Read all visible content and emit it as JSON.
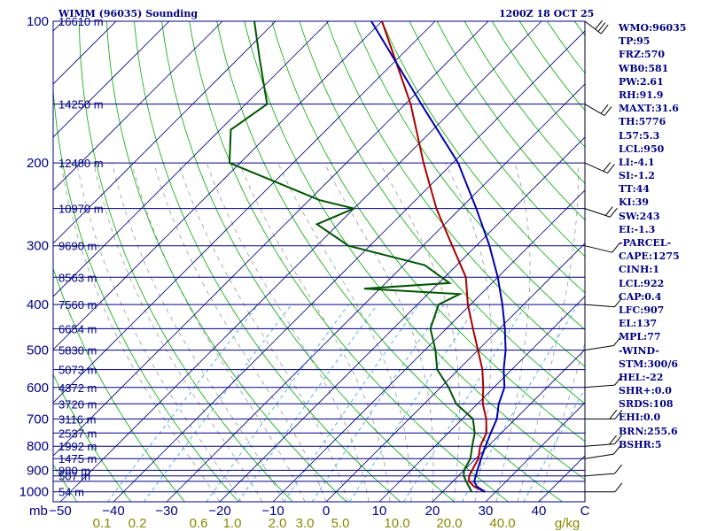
{
  "header": {
    "title": "WIMM (96035) Sounding",
    "datetime": "1200Z 18 OCT 25"
  },
  "chart_data": {
    "type": "line",
    "title": "WIMM (96035) Sounding",
    "subtitle": "1200Z 18 OCT 25",
    "xlabel_units": "C",
    "mixing_units": "g/kg",
    "pressure_unit_label": "mb",
    "pressure_levels": [
      100,
      200,
      300,
      400,
      500,
      600,
      700,
      800,
      900,
      1000
    ],
    "isobar_levels": [
      100,
      150,
      200,
      250,
      300,
      350,
      400,
      450,
      500,
      550,
      600,
      650,
      700,
      750,
      800,
      850,
      900,
      925,
      950,
      1000
    ],
    "height_labels": [
      {
        "p": 100,
        "label": "16610 m"
      },
      {
        "p": 150,
        "label": "14250 m"
      },
      {
        "p": 200,
        "label": "12480 m"
      },
      {
        "p": 250,
        "label": "10970 m"
      },
      {
        "p": 300,
        "label": "9690 m"
      },
      {
        "p": 350,
        "label": "8563 m"
      },
      {
        "p": 400,
        "label": "7560 m"
      },
      {
        "p": 450,
        "label": "6654 m"
      },
      {
        "p": 500,
        "label": "5830 m"
      },
      {
        "p": 550,
        "label": "5073 m"
      },
      {
        "p": 600,
        "label": "4372 m"
      },
      {
        "p": 650,
        "label": "3720 m"
      },
      {
        "p": 700,
        "label": "3116 m"
      },
      {
        "p": 750,
        "label": "2537 m"
      },
      {
        "p": 800,
        "label": "1992 m"
      },
      {
        "p": 850,
        "label": "1475 m"
      },
      {
        "p": 900,
        "label": "980 m"
      },
      {
        "p": 925,
        "label": "507 m"
      },
      {
        "p": 1000,
        "label": "54 m"
      }
    ],
    "temperature_ticks": [
      -50,
      -40,
      -30,
      -20,
      -10,
      0,
      10,
      20,
      30,
      40
    ],
    "mixing_ratio_ticks": [
      "0.1",
      "0.2",
      "0.6",
      "1.0",
      "2.0",
      "3.0",
      "5.0",
      "10.0",
      "20.0",
      "40.0"
    ],
    "series": [
      {
        "name": "Temperature",
        "color": "#aa0000",
        "points": [
          [
            1000,
            28
          ],
          [
            975,
            25
          ],
          [
            950,
            23
          ],
          [
            925,
            22
          ],
          [
            900,
            21.5
          ],
          [
            850,
            20.5
          ],
          [
            800,
            18.5
          ],
          [
            750,
            17.2
          ],
          [
            700,
            14.5
          ],
          [
            650,
            11
          ],
          [
            600,
            8
          ],
          [
            550,
            4.5
          ],
          [
            500,
            0
          ],
          [
            450,
            -5
          ],
          [
            400,
            -10.5
          ],
          [
            350,
            -16
          ],
          [
            300,
            -24.5
          ],
          [
            250,
            -34.5
          ],
          [
            200,
            -45.5
          ],
          [
            150,
            -59
          ],
          [
            100,
            -80
          ]
        ]
      },
      {
        "name": "Dewpoint",
        "color": "#005500",
        "points": [
          [
            1000,
            25.5
          ],
          [
            975,
            24
          ],
          [
            950,
            22.5
          ],
          [
            925,
            21
          ],
          [
            900,
            20
          ],
          [
            850,
            19
          ],
          [
            800,
            17
          ],
          [
            750,
            15
          ],
          [
            700,
            12
          ],
          [
            650,
            6
          ],
          [
            600,
            1.5
          ],
          [
            550,
            -4
          ],
          [
            500,
            -8
          ],
          [
            450,
            -13
          ],
          [
            400,
            -16
          ],
          [
            380,
            -14
          ],
          [
            370,
            -33
          ],
          [
            360,
            -18
          ],
          [
            330,
            -26
          ],
          [
            300,
            -44
          ],
          [
            270,
            -54
          ],
          [
            250,
            -50
          ],
          [
            240,
            -58
          ],
          [
            200,
            -82
          ],
          [
            170,
            -88
          ],
          [
            150,
            -86
          ],
          [
            120,
            -96
          ],
          [
            100,
            -104
          ]
        ]
      },
      {
        "name": "Parcel",
        "color": "#0000aa",
        "points": [
          [
            1000,
            28
          ],
          [
            975,
            25.5
          ],
          [
            950,
            24
          ],
          [
            900,
            22.5
          ],
          [
            850,
            21
          ],
          [
            800,
            19.5
          ],
          [
            750,
            18
          ],
          [
            700,
            16.5
          ],
          [
            650,
            14
          ],
          [
            600,
            12
          ],
          [
            550,
            8.5
          ],
          [
            500,
            5.2
          ],
          [
            450,
            1
          ],
          [
            400,
            -4
          ],
          [
            350,
            -10
          ],
          [
            300,
            -17.5
          ],
          [
            250,
            -27
          ],
          [
            200,
            -39
          ],
          [
            150,
            -57
          ],
          [
            100,
            -82
          ]
        ]
      }
    ],
    "wind_barbs": [
      {
        "p": 1000,
        "dir": 90,
        "kt": 5
      },
      {
        "p": 925,
        "dir": 100,
        "kt": 10
      },
      {
        "p": 850,
        "dir": 110,
        "kt": 10
      },
      {
        "p": 800,
        "dir": 100,
        "kt": 15
      },
      {
        "p": 700,
        "dir": 90,
        "kt": 15
      },
      {
        "p": 600,
        "dir": 100,
        "kt": 10
      },
      {
        "p": 500,
        "dir": 110,
        "kt": 10
      },
      {
        "p": 400,
        "dir": 80,
        "kt": 5
      },
      {
        "p": 300,
        "dir": 60,
        "kt": 10
      },
      {
        "p": 250,
        "dir": 50,
        "kt": 15
      },
      {
        "p": 200,
        "dir": 40,
        "kt": 15
      },
      {
        "p": 150,
        "dir": 30,
        "kt": 20
      },
      {
        "p": 100,
        "dir": 20,
        "kt": 25
      }
    ]
  },
  "indices": [
    "WMO:96035",
    "TP:95",
    "FRZ:570",
    "WB0:581",
    "PW:2.61",
    "RH:91.9",
    "MAXT:31.6",
    "TH:5776",
    "L57:5.3",
    "LCL:950",
    "LI:-4.1",
    "SI:-1.2",
    "TT:44",
    "KI:39",
    "SW:243",
    "EI:-1.3",
    "-PARCEL-",
    "CAPE:1275",
    "CINH:1",
    "LCL:922",
    "CAP:0.4",
    "LFC:907",
    "EL:137",
    "MPL:77",
    "-WIND-",
    "STM:300/6",
    "HEL:-22",
    "SHR+:0.0",
    "SRDS:108",
    "EHI:0.0",
    "BRN:255.6",
    "BSHR:5"
  ],
  "colors": {
    "isobar": "#000080",
    "isotherm": "#000080",
    "dry_adiabat": "#00aa00",
    "moist_adiabat": "#999999",
    "mixing_ratio": "#44aadd",
    "temperature": "#aa0000",
    "dewpoint": "#005500",
    "parcel": "#0000aa",
    "axis_text": "#000080",
    "mixing_text": "#888800"
  }
}
